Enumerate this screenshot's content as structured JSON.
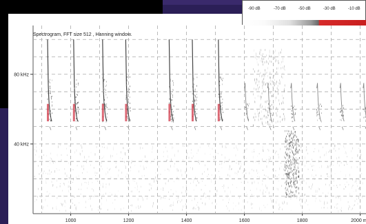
{
  "title": "Spectrogram, FFT size 512 , Hanning window.",
  "colorbar": {
    "labels": [
      "-90 dB",
      "-70 dB",
      "-50 dB",
      "-30 dB",
      "-10 dB"
    ],
    "colors": {
      "low": "#ffffff",
      "mid": "#9a9a9a",
      "high": "#d62a2a"
    }
  },
  "chart_data": {
    "type": "heatmap",
    "title": "Spectrogram, FFT size 512 , Hanning window.",
    "xlabel": "",
    "ylabel": "",
    "x_unit_label": "2000 ms",
    "x_ticks": [
      1000,
      1200,
      1400,
      1600,
      1800,
      2000
    ],
    "x_tick_labels": [
      "1000",
      "1200",
      "1400",
      "1600",
      "1800",
      "2000 ms"
    ],
    "y_ticks": [
      40,
      80
    ],
    "y_tick_labels": [
      "40 kHz",
      "80 kHz"
    ],
    "xlim": [
      870,
      2020
    ],
    "ylim": [
      0,
      108
    ],
    "grid": true,
    "colormap_db_range": [
      -90,
      -10
    ],
    "calls_ms": [
      920,
      1010,
      1110,
      1190,
      1340,
      1420,
      1510,
      1600,
      1680,
      1760,
      1850,
      1930,
      2010
    ],
    "dense_segment_ms": [
      1740,
      1790
    ]
  }
}
